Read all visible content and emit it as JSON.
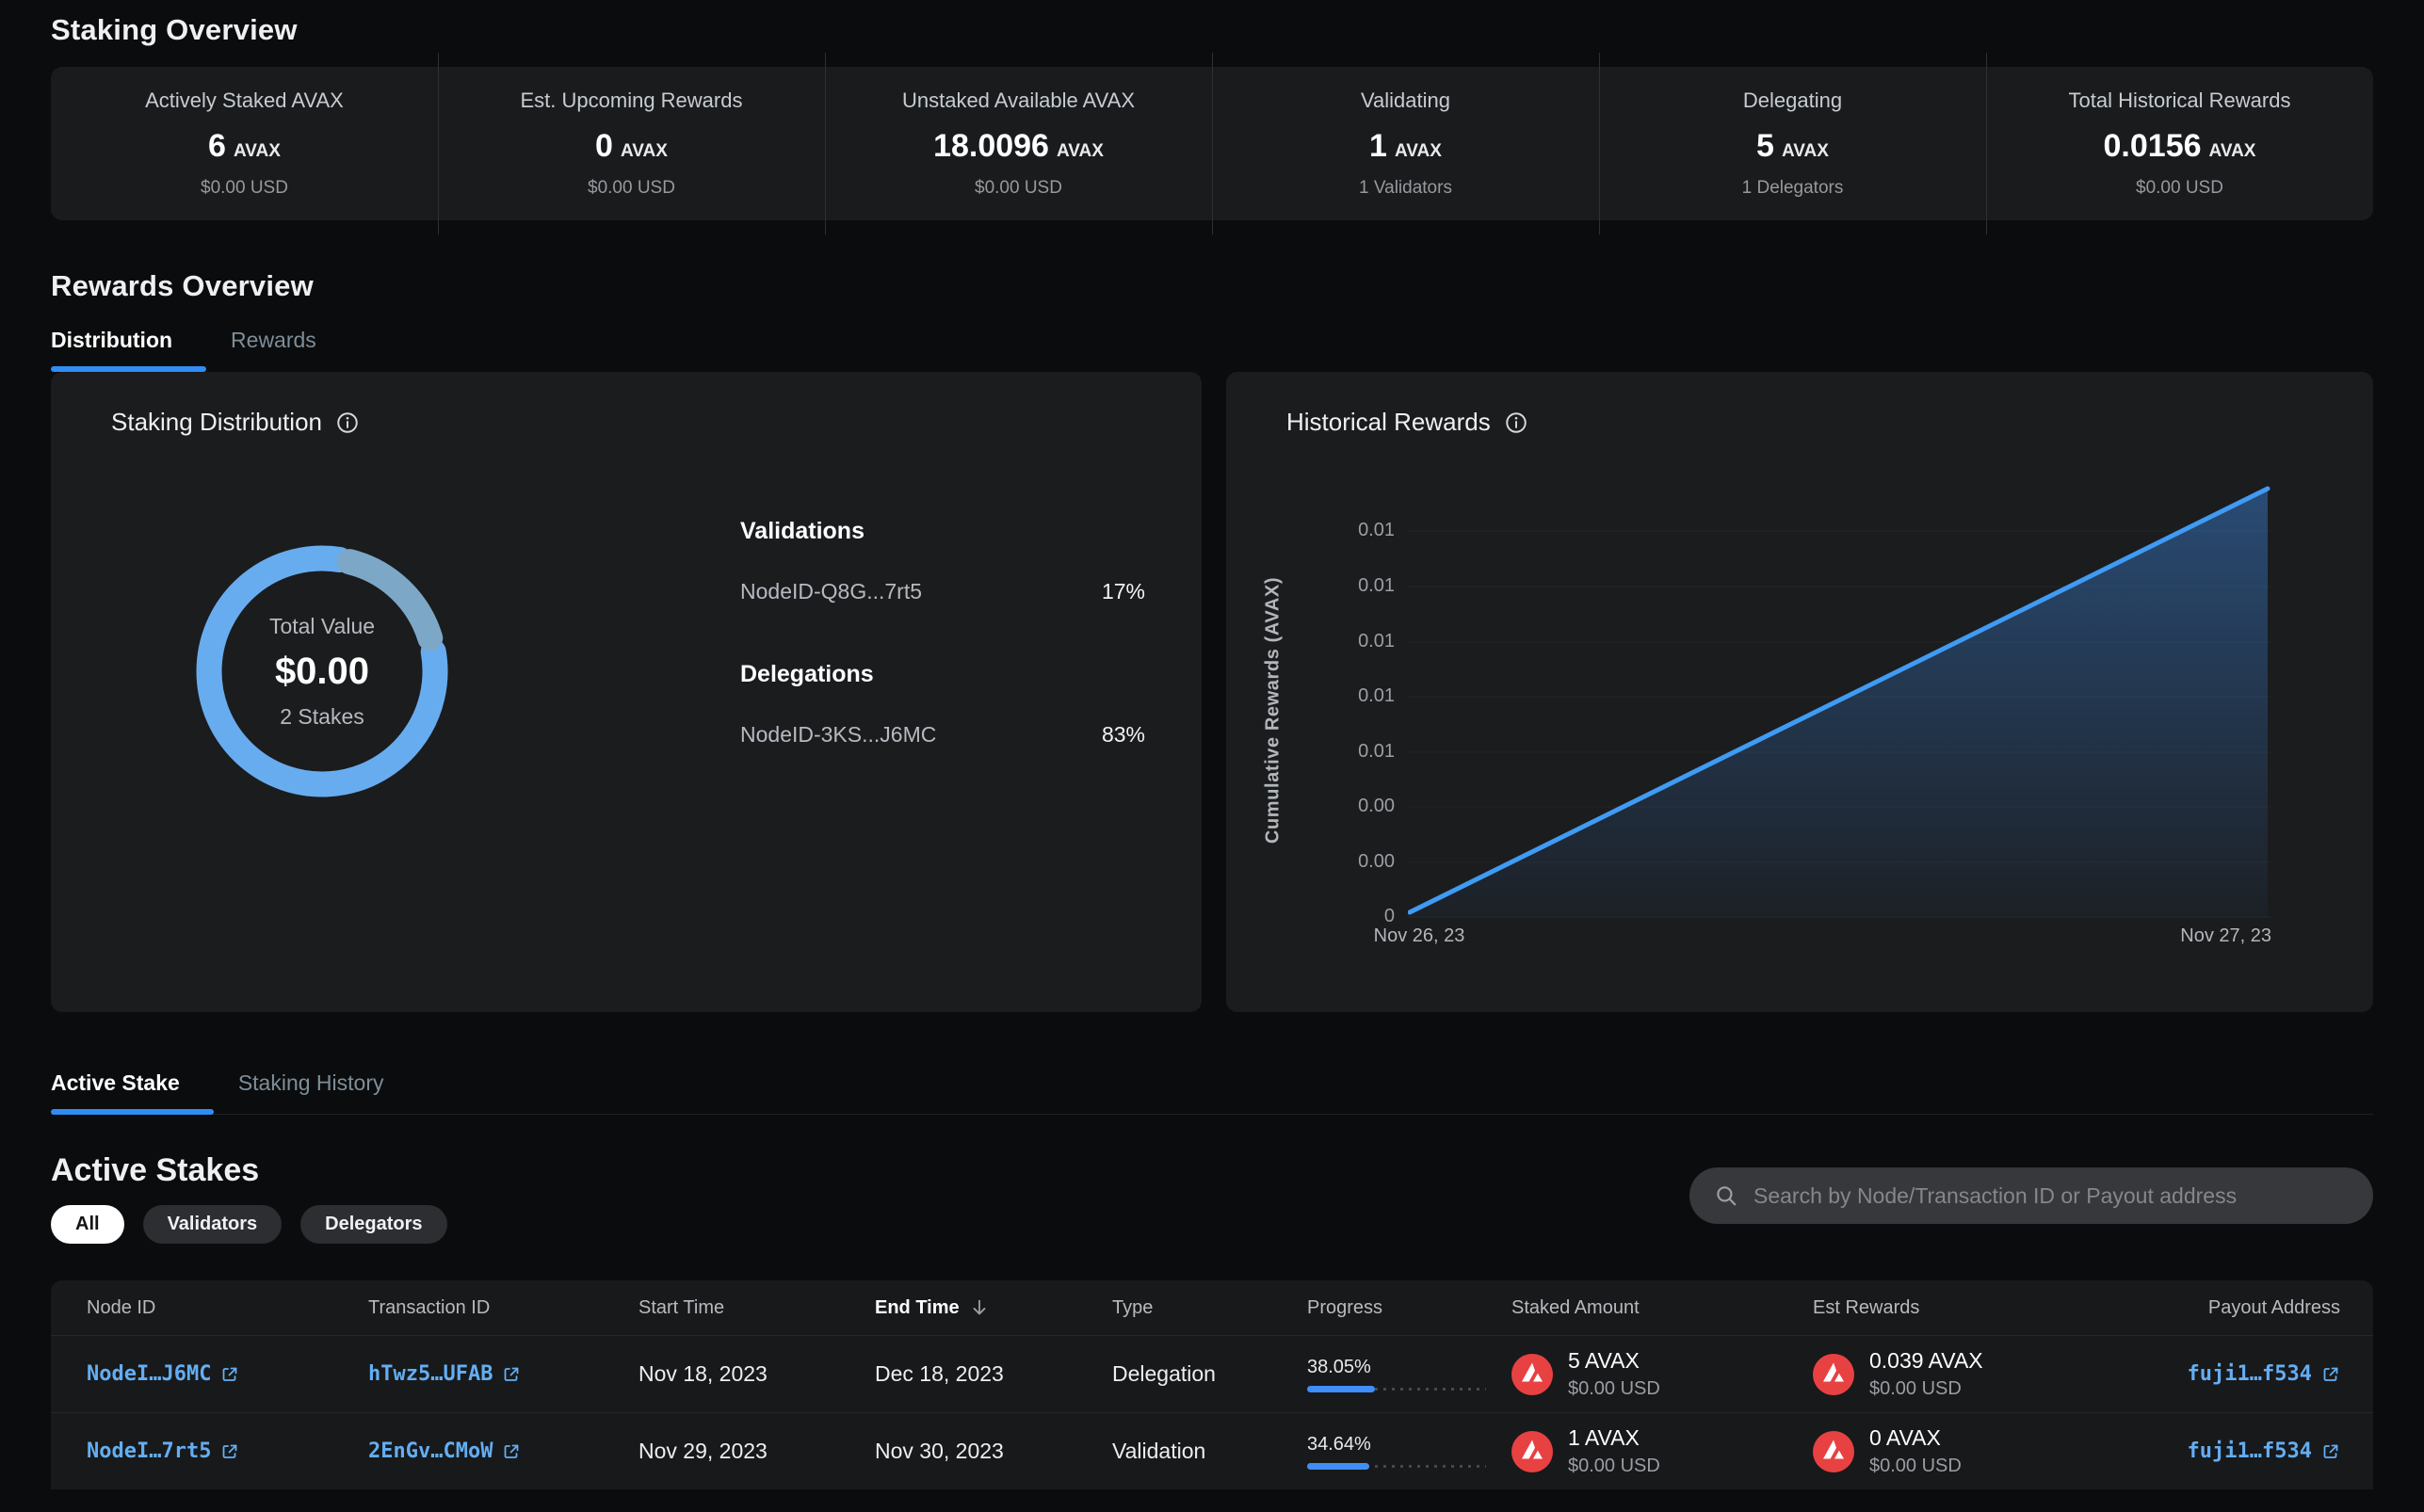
{
  "staking_overview": {
    "title": "Staking Overview",
    "stats": [
      {
        "label": "Actively Staked AVAX",
        "value": "6",
        "unit": "AVAX",
        "sub": "$0.00 USD"
      },
      {
        "label": "Est. Upcoming Rewards",
        "value": "0",
        "unit": "AVAX",
        "sub": "$0.00 USD"
      },
      {
        "label": "Unstaked Available AVAX",
        "value": "18.0096",
        "unit": "AVAX",
        "sub": "$0.00 USD"
      },
      {
        "label": "Validating",
        "value": "1",
        "unit": "AVAX",
        "sub": "1 Validators"
      },
      {
        "label": "Delegating",
        "value": "5",
        "unit": "AVAX",
        "sub": "1 Delegators"
      },
      {
        "label": "Total Historical Rewards",
        "value": "0.0156",
        "unit": "AVAX",
        "sub": "$0.00 USD"
      }
    ]
  },
  "rewards_overview": {
    "title": "Rewards Overview",
    "tabs": [
      "Distribution",
      "Rewards"
    ]
  },
  "distribution_card": {
    "title": "Staking Distribution",
    "total_label": "Total Value",
    "total_value": "$0.00",
    "total_sub": "2 Stakes",
    "validations_heading": "Validations",
    "validation_node": "NodeID-Q8G...7rt5",
    "validation_pct": "17%",
    "delegations_heading": "Delegations",
    "delegation_node": "NodeID-3KS...J6MC",
    "delegation_pct": "83%"
  },
  "historical_card": {
    "title": "Historical Rewards"
  },
  "chart_data": [
    {
      "type": "pie",
      "title": "Staking Distribution",
      "center_label": "Total Value",
      "center_value": "$0.00",
      "center_sub": "2 Stakes",
      "slices": [
        {
          "label": "Delegations NodeID-3KS...J6MC",
          "pct": 83,
          "color": "#68acf0"
        },
        {
          "label": "Validations NodeID-Q8G...7rt5",
          "pct": 17,
          "color": "#7da7c7"
        }
      ],
      "legend_position": "right"
    },
    {
      "type": "area",
      "title": "Historical Rewards",
      "xlabel": "",
      "ylabel": "Cumulative Rewards (AVAX)",
      "x": [
        "Nov 26, 23",
        "Nov 27, 23"
      ],
      "series": [
        {
          "name": "Cumulative Rewards",
          "values": [
            0,
            0.0156
          ]
        }
      ],
      "ylim": [
        0,
        0.0156
      ],
      "yticks": [
        "0.01",
        "0.01",
        "0.01",
        "0.01",
        "0.01",
        "0.00",
        "0.00",
        "0"
      ],
      "grid": true,
      "line_color": "#3f9bf3"
    }
  ],
  "stakes_section": {
    "tabs": [
      "Active Stake",
      "Staking History"
    ],
    "title": "Active Stakes",
    "filters": [
      "All",
      "Validators",
      "Delegators"
    ],
    "search_placeholder": "Search by Node/Transaction ID or Payout address"
  },
  "table": {
    "headers": [
      "Node ID",
      "Transaction ID",
      "Start Time",
      "End Time",
      "Type",
      "Progress",
      "Staked Amount",
      "Est Rewards",
      "Payout Address"
    ],
    "sorted_column": "End Time",
    "rows": [
      {
        "node_id": "NodeI…J6MC",
        "tx_id": "hTwz5…UFAB",
        "start": "Nov 18, 2023",
        "end": "Dec 18, 2023",
        "type": "Delegation",
        "progress": "38.05%",
        "progress_pct": 38.05,
        "staked": "5 AVAX",
        "staked_usd": "$0.00 USD",
        "rewards": "0.039 AVAX",
        "rewards_usd": "$0.00 USD",
        "payout": "fuji1…f534"
      },
      {
        "node_id": "NodeI…7rt5",
        "tx_id": "2EnGv…CMoW",
        "start": "Nov 29, 2023",
        "end": "Nov 30, 2023",
        "type": "Validation",
        "progress": "34.64%",
        "progress_pct": 34.64,
        "staked": "1 AVAX",
        "staked_usd": "$0.00 USD",
        "rewards": "0 AVAX",
        "rewards_usd": "$0.00 USD",
        "payout": "fuji1…f534"
      }
    ]
  }
}
